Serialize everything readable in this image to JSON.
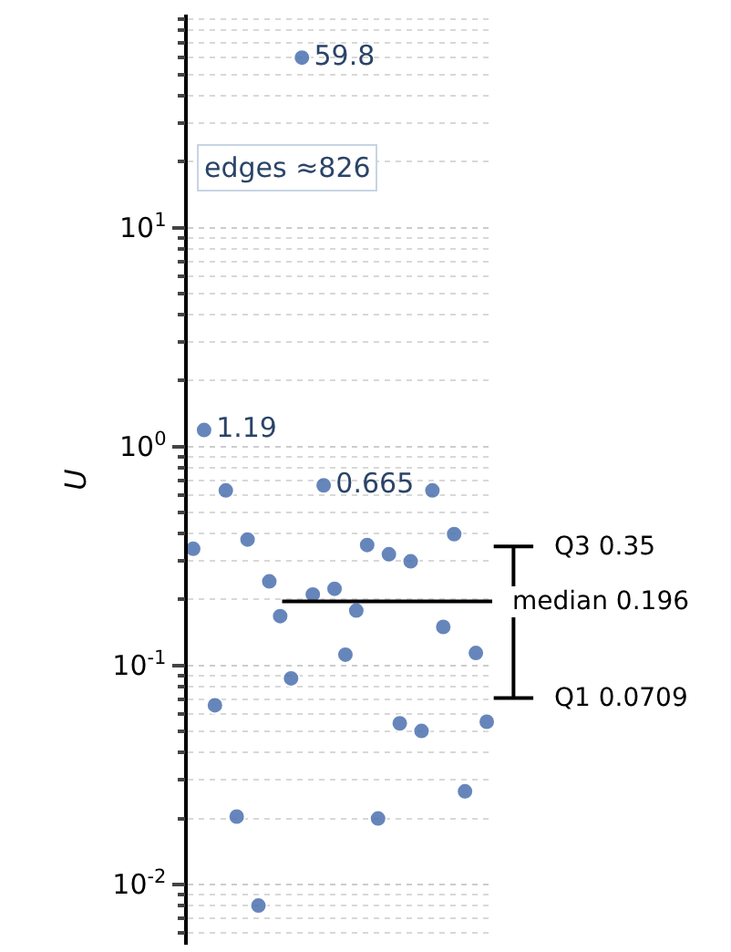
{
  "chart_data": {
    "type": "scatter",
    "ylabel": "U",
    "categories": [
      null,
      null,
      null,
      null,
      null,
      null,
      null,
      null,
      null,
      null,
      null,
      null,
      null,
      null,
      null,
      null,
      null,
      null,
      null,
      null,
      null,
      null,
      null,
      null,
      null,
      null,
      null,
      null
    ],
    "series": [
      {
        "color": "#4c72b0",
        "values": [
          0.341,
          1.19,
          0.0658,
          0.63,
          0.0204,
          0.376,
          0.008,
          0.242,
          0.168,
          0.0873,
          59.8,
          0.211,
          0.665,
          0.224,
          0.112,
          0.178,
          0.355,
          0.02,
          0.322,
          0.0544,
          0.299,
          0.0502,
          0.63,
          0.15,
          0.398,
          0.0266,
          0.114,
          0.0553
        ],
        "value_labels": [
          null,
          "1.19",
          null,
          null,
          null,
          null,
          null,
          null,
          null,
          null,
          "59.8",
          null,
          "0.665",
          null,
          null,
          null,
          null,
          null,
          null,
          null,
          null,
          null,
          null,
          null,
          null,
          null,
          null,
          null
        ]
      }
    ],
    "log": "y",
    "ylim": [
      0.0053,
      94
    ],
    "yticks": [
      {
        "value": 0.01,
        "label": "10$^{-2}$"
      },
      {
        "value": 0.1,
        "label": "10$^{-1}$"
      },
      {
        "value": 1,
        "label": "10$^{0}$"
      },
      {
        "value": 10,
        "label": "10$^{1}$"
      }
    ],
    "grid": "y",
    "marker": "circle",
    "tick_labels": "y",
    "ref_lines": [
      {
        "axis": "y",
        "value": 0.196,
        "label": "median 0.196"
      },
      {
        "axis": "y",
        "value": 0.35,
        "label": "Q3 0.35"
      },
      {
        "axis": "y",
        "value": 0.0709,
        "label": "Q1 0.0709"
      }
    ],
    "annotations": [
      "edges ≈826"
    ]
  }
}
